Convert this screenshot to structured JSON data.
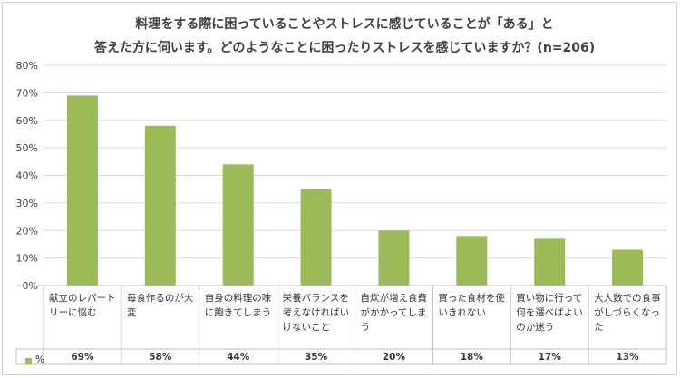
{
  "title_line1": "料理をする際に困っていることやストレスに感じていることが「ある」と",
  "title_line2": "答えた方に伺います。どのようなことに困ったりストレスを感じていますか？(n=206)",
  "colors": {
    "bar": "#9bbb59",
    "grid": "#d9d9d9",
    "axis": "#bfbfbf"
  },
  "chart_data": {
    "type": "bar",
    "title": "料理をする際に困っていることやストレスに感じていることが「ある」と答えた方に伺います。どのようなことに困ったりストレスを感じていますか？(n=206)",
    "categories": [
      "献立のレパートリーに悩む",
      "毎食作るのが大変",
      "自身の料理の味に飽きてしまう",
      "栄養バランスを考えなければいけないこと",
      "自炊が増え食費がかかってしまう",
      "買った食材を使いきれない",
      "買い物に行って何を選べばよいのか迷う",
      "大人数での食事がしづらくなった"
    ],
    "series": [
      {
        "name": "%",
        "values": [
          69,
          58,
          44,
          35,
          20,
          18,
          17,
          13
        ]
      }
    ],
    "value_labels": [
      "69%",
      "58%",
      "44%",
      "35%",
      "20%",
      "18%",
      "17%",
      "13%"
    ],
    "y_ticks": [
      "0%",
      "10%",
      "20%",
      "30%",
      "40%",
      "50%",
      "60%",
      "70%",
      "80%"
    ],
    "ylim": [
      0,
      80
    ],
    "grid": true,
    "legend": "data-table"
  }
}
